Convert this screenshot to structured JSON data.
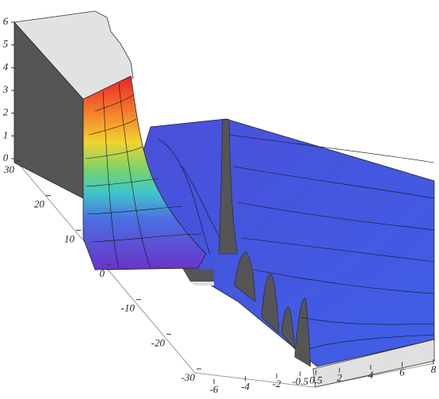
{
  "chart_data": {
    "type": "surface",
    "xlim": [
      -6,
      8
    ],
    "xticks": [
      -6,
      -4,
      -2,
      -0.5,
      0.5,
      2,
      4,
      6,
      8
    ],
    "ylim": [
      -30,
      30
    ],
    "yticks": [
      -30,
      -20,
      -10,
      0,
      10,
      20,
      30
    ],
    "zlim": [
      0,
      6
    ],
    "zticks": [
      0,
      1,
      2,
      3,
      4,
      5,
      6
    ]
  }
}
